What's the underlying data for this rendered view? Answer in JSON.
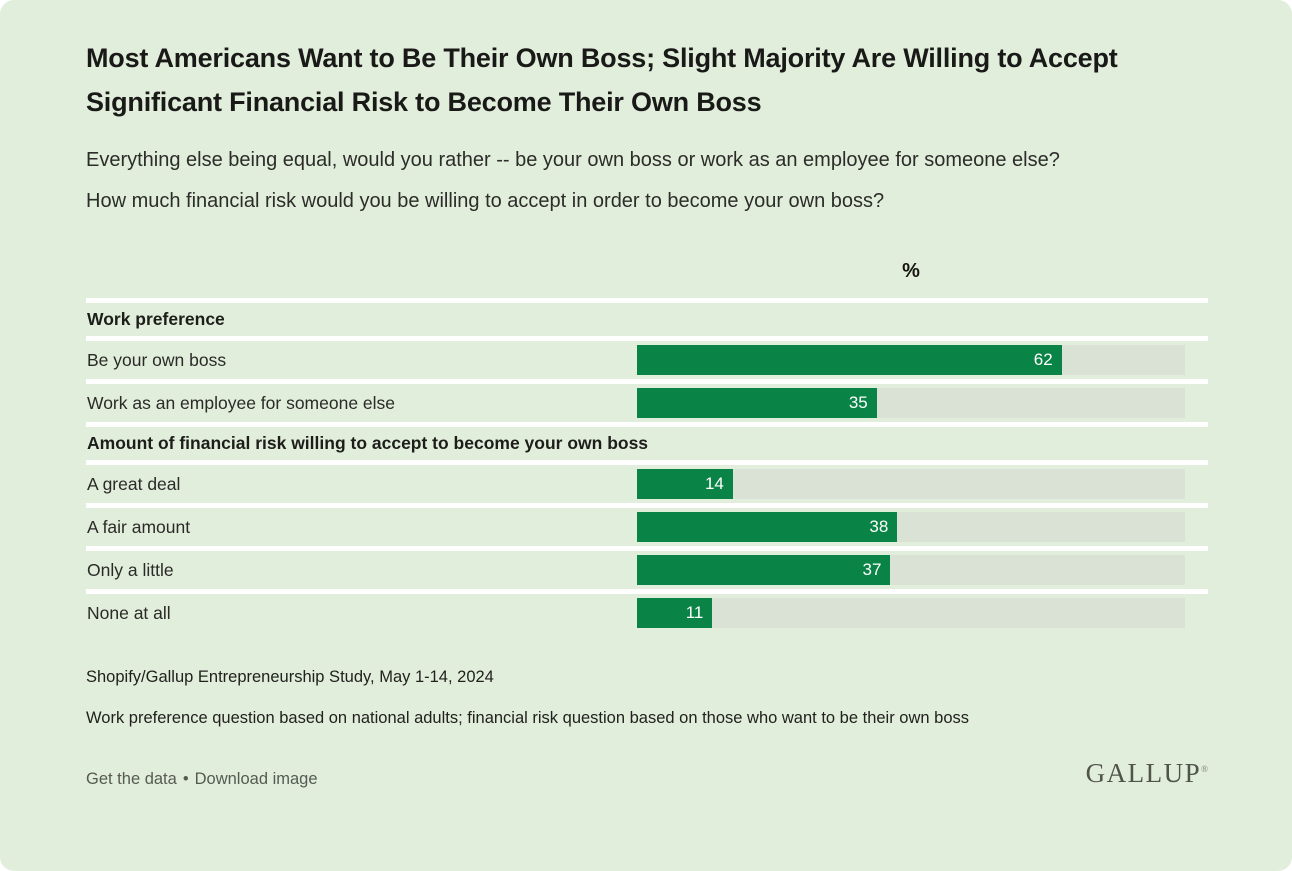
{
  "page": {
    "background": "#e2eedc",
    "title": "Most Americans Want to Be Their Own Boss; Slight Majority Are Willing to Accept Significant Financial Risk to Become Their Own Boss",
    "question1": "Everything else being equal, would you rather -- be your own boss or work as an employee for someone else?",
    "question2": "How much financial risk would you be willing to accept in order to become your own boss?"
  },
  "chart_data": {
    "type": "bar",
    "orientation": "horizontal",
    "value_axis_label": "%",
    "xlim": [
      0,
      80
    ],
    "grid": false,
    "legend": "none",
    "bar_color": "#0a8446",
    "track_color": "#d9e2d5",
    "separator_color": "#ffffff",
    "sections": [
      {
        "header": "Work preference",
        "rows": [
          {
            "label": "Be your own boss",
            "value": 62
          },
          {
            "label": "Work as an employee for someone else",
            "value": 35
          }
        ]
      },
      {
        "header": "Amount of financial risk willing to accept to become your own boss",
        "rows": [
          {
            "label": "A great deal",
            "value": 14
          },
          {
            "label": "A fair amount",
            "value": 38
          },
          {
            "label": "Only a little",
            "value": 37
          },
          {
            "label": "None at all",
            "value": 11
          }
        ]
      }
    ]
  },
  "footer": {
    "source": "Shopify/Gallup Entrepreneurship Study, May 1-14, 2024",
    "note": "Work preference question based on national adults; financial risk question based on those who want to be their own boss",
    "links": {
      "get_data": "Get the data",
      "separator": "•",
      "download": "Download image"
    },
    "logo": "GALLUP",
    "logo_mark": "®"
  }
}
